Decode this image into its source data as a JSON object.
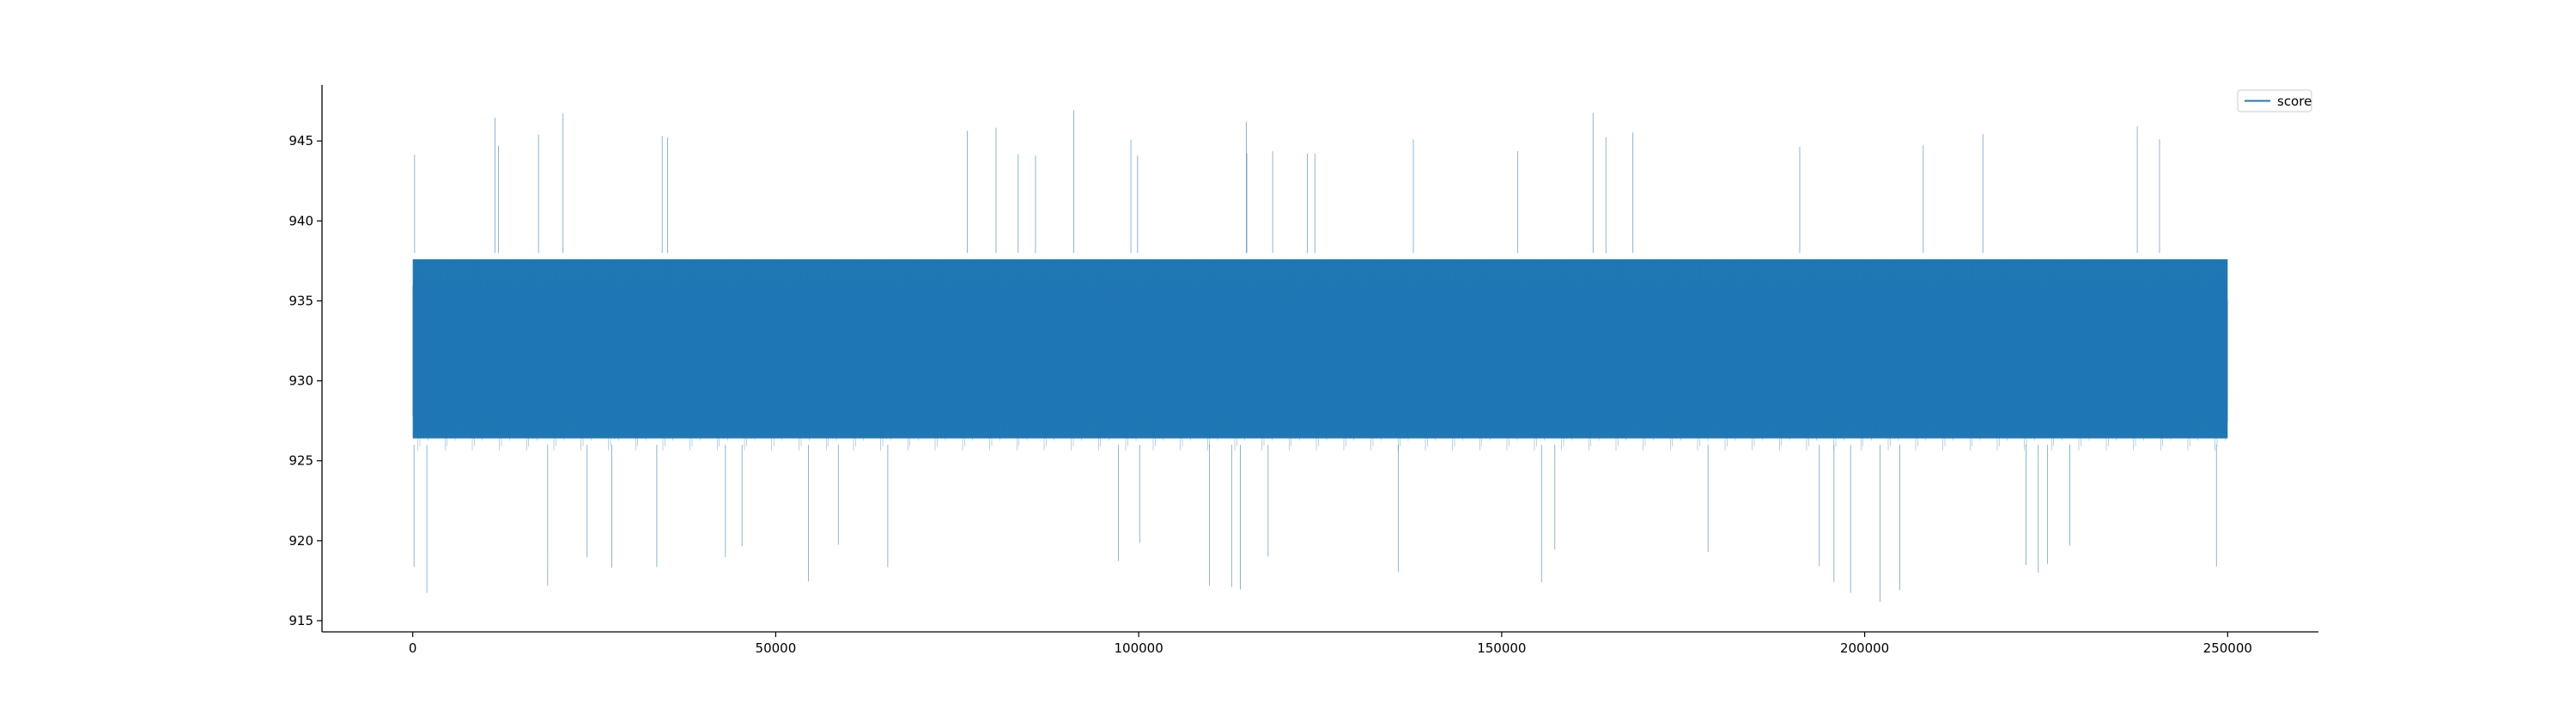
{
  "chart_data": {
    "type": "line",
    "title": "",
    "xlabel": "",
    "ylabel": "",
    "xlim": [
      -12500,
      262500
    ],
    "ylim": [
      914.3,
      948.5
    ],
    "x_range": [
      0,
      250000
    ],
    "x_ticks": [
      0,
      50000,
      100000,
      150000,
      200000,
      250000
    ],
    "x_tick_labels": [
      "0",
      "50000",
      "100000",
      "150000",
      "200000",
      "250000"
    ],
    "y_ticks": [
      915,
      920,
      925,
      930,
      935,
      940,
      945
    ],
    "y_tick_labels": [
      "915",
      "920",
      "925",
      "930",
      "935",
      "940",
      "945"
    ],
    "series": [
      {
        "name": "score",
        "color": "#1f77b4",
        "mean": 931.5,
        "dense_band": [
          926,
          938
        ],
        "typical_extremes": [
          920,
          944
        ],
        "max": 947,
        "min": 916
      }
    ],
    "legend": {
      "position": "upper-right",
      "entries": [
        "score"
      ]
    },
    "grid": false,
    "spines": [
      "left",
      "bottom"
    ]
  }
}
